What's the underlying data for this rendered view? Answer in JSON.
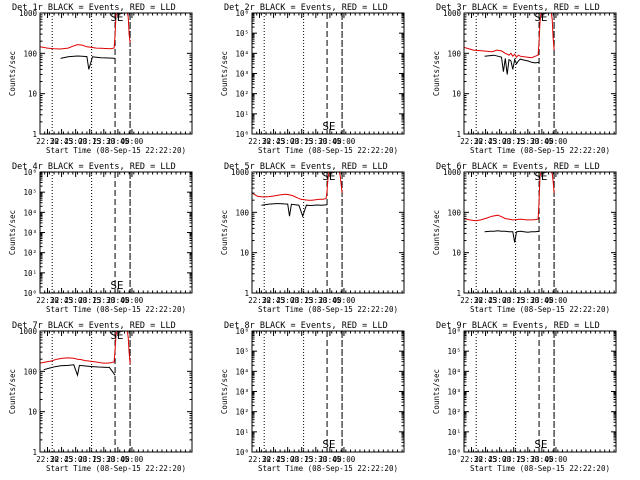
{
  "figure": {
    "background": "#ffffff",
    "ink": "#000000",
    "events_color": "#000000",
    "lld_color": "#e00000"
  },
  "chart_data": [
    {
      "type": "line",
      "title": "Det 1r BLACK = Events, RED = LLD",
      "xlabel": "Start Time (08-Sep-15 22:22:20)",
      "ylabel": "Counts/sec",
      "yscale": "log",
      "ylim": [
        1,
        1000
      ],
      "yticks": [
        "1",
        "10",
        "100",
        "1000"
      ],
      "xlim_min": [
        0,
        162
      ],
      "xticks_min": [
        8,
        23,
        38,
        53,
        68,
        83,
        98
      ],
      "xticklabels": [
        "22:30",
        "22:45",
        "23:00",
        "23:15",
        "23:30",
        "23:45",
        "00:00"
      ],
      "dotted_lines_min": [
        13,
        55,
        96
      ],
      "dashed_lines_min": [
        80,
        96
      ],
      "annotation": "SE",
      "annotation_min": 82,
      "series": [
        {
          "name": "Events",
          "color": "#000000",
          "x": [
            22,
            30,
            35,
            40,
            45,
            50,
            52,
            56,
            60,
            65,
            70,
            76,
            80
          ],
          "y": [
            75,
            82,
            84,
            86,
            85,
            83,
            40,
            82,
            80,
            78,
            77,
            76,
            75
          ]
        },
        {
          "name": "LLD",
          "color": "#e00000",
          "x": [
            0,
            8,
            15,
            22,
            30,
            35,
            40,
            45,
            50,
            55,
            60,
            65,
            70,
            75,
            79,
            80,
            81,
            82,
            83,
            85,
            86,
            87,
            88,
            89,
            90,
            91,
            92,
            93,
            94,
            95,
            96,
            97,
            98,
            99,
            100,
            101,
            102,
            103,
            104,
            105,
            106,
            107,
            108,
            109,
            110,
            111,
            112,
            113,
            114,
            115,
            116,
            117,
            118,
            119,
            120,
            121,
            122,
            123,
            124,
            125,
            126,
            127,
            128,
            129,
            130,
            131,
            132,
            133,
            134,
            135,
            136,
            137,
            138,
            139,
            140,
            141,
            142,
            143,
            144,
            145,
            146,
            147,
            148,
            149,
            150,
            151,
            152,
            153,
            154,
            155,
            156,
            157,
            158,
            159,
            160,
            161,
            162
          ],
          "y": [
            145,
            135,
            130,
            128,
            135,
            150,
            165,
            160,
            145,
            140,
            135,
            133,
            132,
            130,
            135,
            300,
            900,
            950,
            1000,
            null,
            null,
            null,
            null,
            null,
            null,
            null,
            null,
            null,
            null,
            null,
            null,
            null,
            null,
            null,
            null,
            null,
            null,
            null,
            null,
            null,
            null,
            null,
            null,
            null,
            null,
            null,
            null,
            null,
            null,
            null,
            null,
            null,
            null,
            null,
            null,
            null,
            null,
            null,
            null,
            null,
            null,
            null,
            null,
            null,
            null,
            null,
            null,
            null,
            null,
            null,
            null,
            null,
            null,
            null,
            null,
            null,
            null,
            null,
            null,
            null,
            null,
            null,
            null,
            null,
            null,
            null,
            null,
            null,
            null,
            null,
            null,
            null,
            null,
            null,
            null,
            null,
            null
          ],
          "tail_x": [
            93,
            94,
            95,
            96
          ],
          "tail_y": [
            1000,
            800,
            300,
            180
          ]
        }
      ]
    },
    {
      "type": "line",
      "title": "Det 2r BLACK = Events, RED = LLD",
      "xlabel": "Start Time (08-Sep-15 22:22:20)",
      "ylabel": "Counts/sec",
      "yscale": "log",
      "ylim": [
        1,
        1000000
      ],
      "yticks": [
        "10⁰",
        "10¹",
        "10²",
        "10³",
        "10⁴",
        "10⁵",
        "10⁶"
      ],
      "xlim_min": [
        0,
        162
      ],
      "xticks_min": [
        8,
        23,
        38,
        53,
        68,
        83,
        98
      ],
      "xticklabels": [
        "22:30",
        "22:45",
        "23:00",
        "23:15",
        "23:30",
        "23:45",
        "00:00"
      ],
      "dotted_lines_min": [
        13,
        55,
        96
      ],
      "dashed_lines_min": [
        80,
        96
      ],
      "annotation": "SE",
      "annotation_min": 82,
      "series": []
    },
    {
      "type": "line",
      "title": "Det 3r BLACK = Events, RED = LLD",
      "xlabel": "Start Time (08-Sep-15 22:22:20)",
      "ylabel": "Counts/sec",
      "yscale": "log",
      "ylim": [
        1,
        1000
      ],
      "yticks": [
        "1",
        "10",
        "100",
        "1000"
      ],
      "xlim_min": [
        0,
        162
      ],
      "xticks_min": [
        8,
        23,
        38,
        53,
        68,
        83,
        98
      ],
      "xticklabels": [
        "22:30",
        "22:45",
        "23:00",
        "23:15",
        "23:30",
        "23:45",
        "00:00"
      ],
      "dotted_lines_min": [
        13,
        55,
        96
      ],
      "dashed_lines_min": [
        80,
        96
      ],
      "annotation": "SE",
      "annotation_min": 82,
      "series": [
        {
          "name": "Events",
          "color": "#000000",
          "x": [
            22,
            28,
            32,
            36,
            40,
            42,
            44,
            46,
            48,
            50,
            52,
            54,
            56,
            58,
            60,
            64,
            68,
            72,
            76,
            80
          ],
          "y": [
            85,
            88,
            90,
            85,
            80,
            35,
            75,
            30,
            70,
            65,
            40,
            70,
            55,
            65,
            72,
            68,
            65,
            60,
            58,
            60
          ]
        },
        {
          "name": "LLD",
          "color": "#e00000",
          "x": [
            0,
            10,
            20,
            30,
            35,
            40,
            44,
            46,
            48,
            50,
            52,
            54,
            56,
            58,
            60,
            64,
            68,
            72,
            76,
            79,
            80,
            81,
            82,
            83
          ],
          "y": [
            140,
            120,
            115,
            110,
            120,
            115,
            100,
            95,
            90,
            100,
            85,
            95,
            80,
            90,
            85,
            82,
            80,
            78,
            85,
            90,
            200,
            600,
            950,
            1000
          ],
          "tail_x": [
            93,
            94,
            95,
            96
          ],
          "tail_y": [
            1000,
            700,
            250,
            120
          ]
        }
      ]
    },
    {
      "type": "line",
      "title": "Det 4r BLACK = Events, RED = LLD",
      "xlabel": "Start Time (08-Sep-15 22:22:20)",
      "ylabel": "Counts/sec",
      "yscale": "log",
      "ylim": [
        1,
        1000000
      ],
      "yticks": [
        "10⁰",
        "10¹",
        "10²",
        "10³",
        "10⁴",
        "10⁵",
        "10⁶"
      ],
      "xlim_min": [
        0,
        162
      ],
      "xticks_min": [
        8,
        23,
        38,
        53,
        68,
        83,
        98
      ],
      "xticklabels": [
        "22:30",
        "22:45",
        "23:00",
        "23:15",
        "23:30",
        "23:45",
        "00:00"
      ],
      "dotted_lines_min": [
        13,
        55,
        96
      ],
      "dashed_lines_min": [
        80,
        96
      ],
      "annotation": "SE",
      "annotation_min": 82,
      "series": []
    },
    {
      "type": "line",
      "title": "Det 5r BLACK = Events, RED = LLD",
      "xlabel": "Start Time (08-Sep-15 22:22:20)",
      "ylabel": "Counts/sec",
      "yscale": "log",
      "ylim": [
        1,
        1000
      ],
      "yticks": [
        "1",
        "10",
        "100",
        "1000"
      ],
      "xlim_min": [
        0,
        162
      ],
      "xticks_min": [
        8,
        23,
        38,
        53,
        68,
        83,
        98
      ],
      "xticklabels": [
        "22:30",
        "22:45",
        "23:00",
        "23:15",
        "23:30",
        "23:45",
        "00:00"
      ],
      "dotted_lines_min": [
        13,
        55,
        96
      ],
      "dashed_lines_min": [
        80,
        96
      ],
      "annotation": "SE",
      "annotation_min": 82,
      "series": [
        {
          "name": "Events",
          "color": "#000000",
          "x": [
            10,
            18,
            26,
            30,
            34,
            38,
            40,
            42,
            46,
            50,
            54,
            58,
            62,
            66,
            70,
            74,
            80
          ],
          "y": [
            150,
            160,
            165,
            165,
            162,
            160,
            80,
            158,
            155,
            150,
            80,
            150,
            148,
            150,
            152,
            150,
            155
          ]
        },
        {
          "name": "LLD",
          "color": "#e00000",
          "x": [
            0,
            6,
            12,
            18,
            24,
            30,
            36,
            40,
            44,
            48,
            52,
            56,
            60,
            64,
            68,
            72,
            76,
            79,
            80,
            81,
            82,
            83
          ],
          "y": [
            300,
            250,
            240,
            245,
            255,
            270,
            280,
            270,
            255,
            230,
            210,
            205,
            200,
            200,
            205,
            210,
            210,
            220,
            350,
            700,
            950,
            1000
          ],
          "tail_x": [
            93,
            94,
            95,
            96
          ],
          "tail_y": [
            1000,
            800,
            500,
            300
          ]
        }
      ]
    },
    {
      "type": "line",
      "title": "Det 6r BLACK = Events, RED = LLD",
      "xlabel": "Start Time (08-Sep-15 22:22:20)",
      "ylabel": "Counts/sec",
      "yscale": "log",
      "ylim": [
        1,
        1000
      ],
      "yticks": [
        "1",
        "10",
        "100",
        "1000"
      ],
      "xlim_min": [
        0,
        162
      ],
      "xticks_min": [
        8,
        23,
        38,
        53,
        68,
        83,
        98
      ],
      "xticklabels": [
        "22:30",
        "22:45",
        "23:00",
        "23:15",
        "23:30",
        "23:45",
        "00:00"
      ],
      "dotted_lines_min": [
        13,
        55,
        96
      ],
      "dashed_lines_min": [
        80,
        96
      ],
      "annotation": "SE",
      "annotation_min": 82,
      "series": [
        {
          "name": "Events",
          "color": "#000000",
          "x": [
            22,
            28,
            32,
            36,
            40,
            44,
            48,
            52,
            54,
            56,
            60,
            64,
            68,
            72,
            76,
            80
          ],
          "y": [
            33,
            34,
            34,
            35,
            34,
            34,
            33,
            33,
            18,
            33,
            34,
            33,
            32,
            33,
            33,
            34
          ]
        },
        {
          "name": "LLD",
          "color": "#e00000",
          "x": [
            0,
            6,
            12,
            18,
            24,
            30,
            36,
            40,
            44,
            48,
            52,
            56,
            60,
            64,
            68,
            72,
            76,
            79,
            80,
            81,
            82,
            83
          ],
          "y": [
            70,
            65,
            62,
            65,
            72,
            80,
            85,
            78,
            70,
            68,
            65,
            66,
            68,
            66,
            65,
            65,
            66,
            68,
            200,
            800,
            950,
            1000
          ],
          "tail_x": [
            93,
            94,
            95,
            96
          ],
          "tail_y": [
            1000,
            900,
            600,
            300
          ]
        }
      ]
    },
    {
      "type": "line",
      "title": "Det 7r BLACK = Events, RED = LLD",
      "xlabel": "Start Time (08-Sep-15 22:22:20)",
      "ylabel": "Counts/sec",
      "yscale": "log",
      "ylim": [
        1,
        1000
      ],
      "yticks": [
        "1",
        "10",
        "100",
        "1000"
      ],
      "xlim_min": [
        0,
        162
      ],
      "xticks_min": [
        8,
        23,
        38,
        53,
        68,
        83,
        98
      ],
      "xticklabels": [
        "22:30",
        "22:45",
        "23:00",
        "23:15",
        "23:30",
        "23:45",
        "00:00"
      ],
      "dotted_lines_min": [
        13,
        55,
        96
      ],
      "dashed_lines_min": [
        80,
        96
      ],
      "annotation": "SE",
      "annotation_min": 82,
      "series": [
        {
          "name": "Events",
          "color": "#000000",
          "x": [
            4,
            10,
            16,
            22,
            30,
            36,
            40,
            42,
            46,
            50,
            54,
            58,
            62,
            66,
            70,
            74,
            80
          ],
          "y": [
            110,
            120,
            130,
            138,
            140,
            145,
            80,
            140,
            138,
            135,
            132,
            130,
            128,
            127,
            125,
            125,
            80
          ]
        },
        {
          "name": "LLD",
          "color": "#e00000",
          "x": [
            0,
            6,
            12,
            18,
            24,
            30,
            36,
            40,
            44,
            48,
            52,
            56,
            60,
            64,
            68,
            72,
            76,
            79,
            80,
            81,
            82,
            83
          ],
          "y": [
            160,
            170,
            180,
            200,
            210,
            215,
            210,
            200,
            195,
            185,
            180,
            175,
            170,
            165,
            160,
            160,
            165,
            170,
            350,
            800,
            950,
            1000
          ],
          "tail_x": [
            93,
            94,
            95,
            96
          ],
          "tail_y": [
            1000,
            700,
            300,
            150
          ]
        }
      ]
    },
    {
      "type": "line",
      "title": "Det 8r BLACK = Events, RED = LLD",
      "xlabel": "Start Time (08-Sep-15 22:22:20)",
      "ylabel": "Counts/sec",
      "yscale": "log",
      "ylim": [
        1,
        1000000
      ],
      "yticks": [
        "10⁰",
        "10¹",
        "10²",
        "10³",
        "10⁴",
        "10⁵",
        "10⁶"
      ],
      "xlim_min": [
        0,
        162
      ],
      "xticks_min": [
        8,
        23,
        38,
        53,
        68,
        83,
        98
      ],
      "xticklabels": [
        "22:30",
        "22:45",
        "23:00",
        "23:15",
        "23:30",
        "23:45",
        "00:00"
      ],
      "dotted_lines_min": [
        13,
        55,
        96
      ],
      "dashed_lines_min": [
        80,
        96
      ],
      "annotation": "SE",
      "annotation_min": 82,
      "series": []
    },
    {
      "type": "line",
      "title": "Det 9r BLACK = Events, RED = LLD",
      "xlabel": "Start Time (08-Sep-15 22:22:20)",
      "ylabel": "Counts/sec",
      "yscale": "log",
      "ylim": [
        1,
        1000000
      ],
      "yticks": [
        "10⁰",
        "10¹",
        "10²",
        "10³",
        "10⁴",
        "10⁵",
        "10⁶"
      ],
      "xlim_min": [
        0,
        162
      ],
      "xticks_min": [
        8,
        23,
        38,
        53,
        68,
        83,
        98
      ],
      "xticklabels": [
        "22:30",
        "22:45",
        "23:00",
        "23:15",
        "23:30",
        "23:45",
        "00:00"
      ],
      "dotted_lines_min": [
        13,
        55,
        96
      ],
      "dashed_lines_min": [
        80,
        96
      ],
      "annotation": "SE",
      "annotation_min": 82,
      "series": []
    }
  ]
}
